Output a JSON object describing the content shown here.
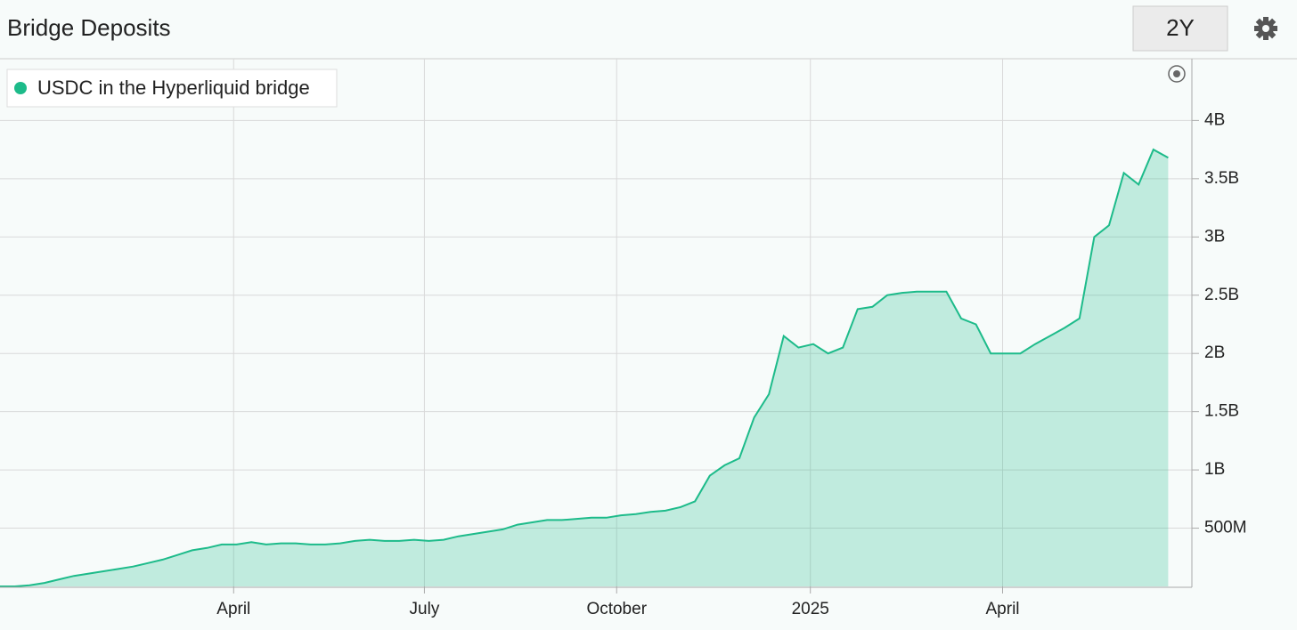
{
  "chart_data": {
    "type": "area",
    "title": "Bridge Deposits",
    "range_button": "2Y",
    "series": [
      {
        "name": "USDC in the Hyperliquid bridge",
        "color": "#1dbb8a",
        "values": [
          0,
          0,
          10000000,
          30000000,
          60000000,
          90000000,
          110000000,
          130000000,
          150000000,
          170000000,
          200000000,
          230000000,
          270000000,
          310000000,
          330000000,
          360000000,
          360000000,
          380000000,
          360000000,
          370000000,
          370000000,
          360000000,
          360000000,
          370000000,
          390000000,
          400000000,
          390000000,
          390000000,
          400000000,
          390000000,
          400000000,
          430000000,
          450000000,
          470000000,
          490000000,
          530000000,
          550000000,
          570000000,
          570000000,
          580000000,
          590000000,
          590000000,
          610000000,
          620000000,
          640000000,
          650000000,
          680000000,
          730000000,
          950000000,
          1040000000,
          1100000000,
          1450000000,
          1650000000,
          2150000000,
          2050000000,
          2080000000,
          2000000000,
          2050000000,
          2380000000,
          2400000000,
          2500000000,
          2520000000,
          2530000000,
          2530000000,
          2530000000,
          2300000000,
          2250000000,
          2000000000,
          2000000000,
          2000000000,
          2080000000,
          2150000000,
          2220000000,
          2300000000,
          3000000000,
          3100000000,
          3550000000,
          3450000000,
          3750000000,
          3680000000
        ]
      }
    ],
    "xlim": [
      0,
      80.6
    ],
    "xticks": [
      {
        "value": 15.8,
        "label": "April"
      },
      {
        "value": 28.7,
        "label": "July"
      },
      {
        "value": 41.7,
        "label": "October"
      },
      {
        "value": 54.8,
        "label": "2025"
      },
      {
        "value": 67.8,
        "label": "April"
      }
    ],
    "ylim": [
      0,
      4530000000
    ],
    "yticks": [
      {
        "value": 500000000,
        "label": "500M"
      },
      {
        "value": 1000000000,
        "label": "1B"
      },
      {
        "value": 1500000000,
        "label": "1.5B"
      },
      {
        "value": 2000000000,
        "label": "2B"
      },
      {
        "value": 2500000000,
        "label": "2.5B"
      },
      {
        "value": 3000000000,
        "label": "3B"
      },
      {
        "value": 3500000000,
        "label": "3.5B"
      },
      {
        "value": 4000000000,
        "label": "4B"
      }
    ],
    "grid": true,
    "legend": "top-left"
  }
}
